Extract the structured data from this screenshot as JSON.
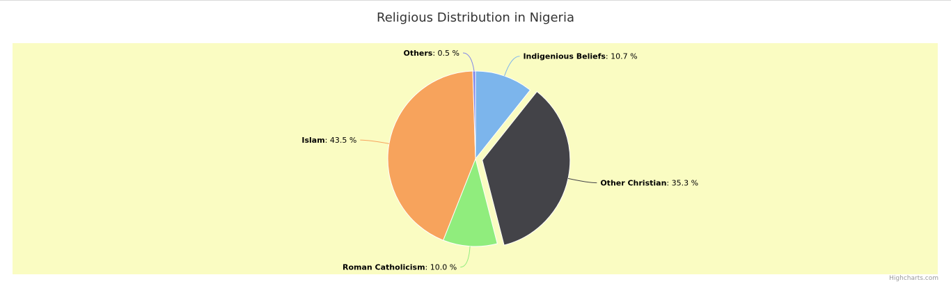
{
  "chart": {
    "title": "Religious Distribution in Nigeria",
    "credit": "Highcharts.com",
    "background_color": "#fafcc2"
  },
  "chart_data": {
    "type": "pie",
    "title": "Religious Distribution in Nigeria",
    "series": [
      {
        "data": [
          {
            "name": "Indigenious Beliefs",
            "value": 10.7,
            "label": "10.7 %",
            "color": "#7cb5ec",
            "sliced": false
          },
          {
            "name": "Other Christian",
            "value": 35.3,
            "label": "35.3 %",
            "color": "#434348",
            "sliced": true
          },
          {
            "name": "Roman Catholicism",
            "value": 10.0,
            "label": "10.0 %",
            "color": "#90ed7d",
            "sliced": false
          },
          {
            "name": "Islam",
            "value": 43.5,
            "label": "43.5 %",
            "color": "#f7a35c",
            "sliced": false
          },
          {
            "name": "Others",
            "value": 0.5,
            "label": "0.5 %",
            "color": "#8085e9",
            "sliced": false
          }
        ]
      }
    ],
    "legend": "none"
  }
}
